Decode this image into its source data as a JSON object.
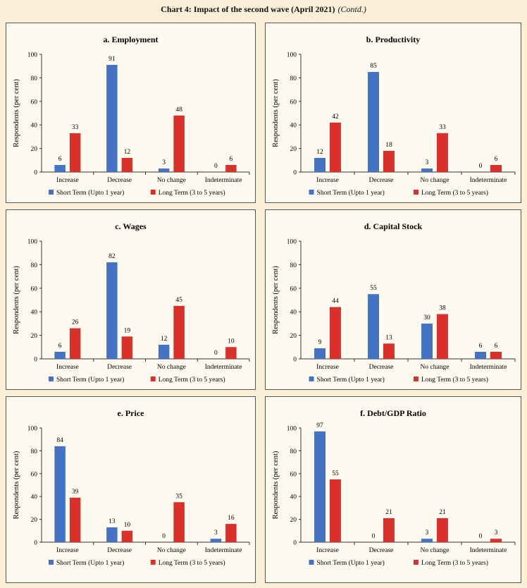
{
  "page": {
    "title": "Chart 4: Impact of the second wave (April 2021)",
    "title_suffix": "(Contd.)"
  },
  "colors": {
    "short": "#4472c4",
    "long": "#d9302c"
  },
  "chart_data": [
    {
      "type": "bar",
      "title": "a. Employment",
      "ylabel": "Respondents  (per cent)",
      "ylim": [
        0,
        100
      ],
      "yticks": [
        0,
        20,
        40,
        60,
        80,
        100
      ],
      "categories": [
        "Increase",
        "Decrease",
        "No change",
        "Indeterminate"
      ],
      "series": [
        {
          "name": "Short Term (Upto 1 year)",
          "values": [
            6,
            91,
            3,
            0
          ]
        },
        {
          "name": "Long Term (3 to 5 years)",
          "values": [
            33,
            12,
            48,
            6
          ]
        }
      ]
    },
    {
      "type": "bar",
      "title": "b. Productivity",
      "ylabel": "Respondents  (per cent)",
      "ylim": [
        0,
        100
      ],
      "yticks": [
        0,
        20,
        40,
        60,
        80,
        100
      ],
      "categories": [
        "Increase",
        "Decrease",
        "No change",
        "Indeterminate"
      ],
      "series": [
        {
          "name": "Short Term (Upto 1 year)",
          "values": [
            12,
            85,
            3,
            0
          ]
        },
        {
          "name": "Long Term (3 to 5 years)",
          "values": [
            42,
            18,
            33,
            6
          ]
        }
      ]
    },
    {
      "type": "bar",
      "title": "c. Wages",
      "ylabel": "Respondents  (per cent)",
      "ylim": [
        0,
        100
      ],
      "yticks": [
        0,
        20,
        40,
        60,
        80,
        100
      ],
      "categories": [
        "Increase",
        "Decrease",
        "No change",
        "Indeterminate"
      ],
      "series": [
        {
          "name": "Short Term (Upto 1 year)",
          "values": [
            6,
            82,
            12,
            0
          ]
        },
        {
          "name": "Long Term (3 to 5 years)",
          "values": [
            26,
            19,
            45,
            10
          ]
        }
      ]
    },
    {
      "type": "bar",
      "title": "d. Capital Stock",
      "ylabel": "Respondents  (per cent)",
      "ylim": [
        0,
        100
      ],
      "yticks": [
        0,
        20,
        40,
        60,
        80,
        100
      ],
      "categories": [
        "Increase",
        "Decrease",
        "No change",
        "Indeterminate"
      ],
      "series": [
        {
          "name": "Short Term (Upto 1 year)",
          "values": [
            9,
            55,
            30,
            6
          ]
        },
        {
          "name": "Long Term (3 to 5 years)",
          "values": [
            44,
            13,
            38,
            6
          ]
        }
      ]
    },
    {
      "type": "bar",
      "title": "e. Price",
      "ylabel": "Respondents (per cent)",
      "ylim": [
        0,
        100
      ],
      "yticks": [
        0,
        20,
        40,
        60,
        80,
        100
      ],
      "categories": [
        "Increase",
        "Decrease",
        "No change",
        "Indeterminate"
      ],
      "series": [
        {
          "name": "Short Term (Upto 1 year)",
          "values": [
            84,
            13,
            0,
            3
          ]
        },
        {
          "name": "Long Term (3 to 5 years)",
          "values": [
            39,
            10,
            35,
            16
          ]
        }
      ]
    },
    {
      "type": "bar",
      "title": "f. Debt/GDP Ratio",
      "ylabel": "Respondents (per cent)",
      "ylim": [
        0,
        100
      ],
      "yticks": [
        0,
        20,
        40,
        60,
        80,
        100
      ],
      "categories": [
        "Increase",
        "Decrease",
        "No change",
        "Indeterminate"
      ],
      "series": [
        {
          "name": "Short Term (Upto 1 year)",
          "values": [
            97,
            0,
            3,
            0
          ]
        },
        {
          "name": "Long Term (3 to 5 years)",
          "values": [
            55,
            21,
            21,
            3
          ]
        }
      ]
    }
  ]
}
